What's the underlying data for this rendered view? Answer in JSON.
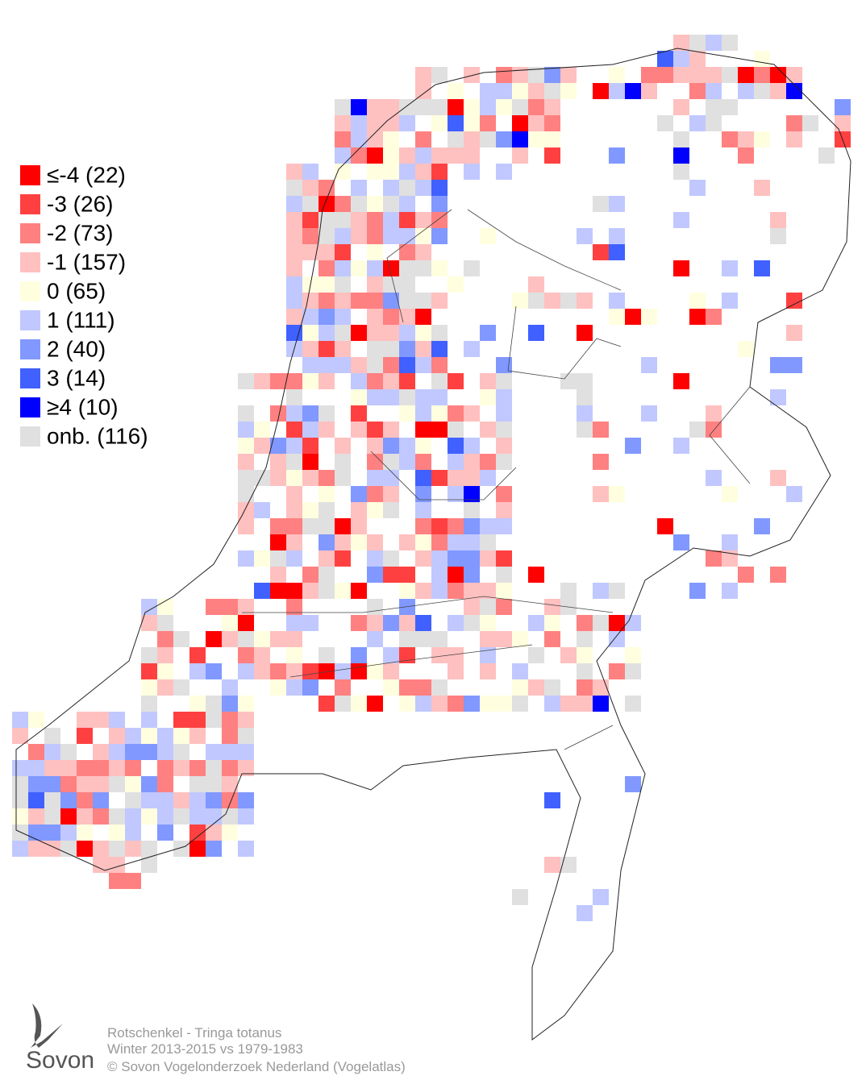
{
  "legend": {
    "items": [
      {
        "label": "≤-4 (22)",
        "color": "#ff0000"
      },
      {
        "label": "-3 (26)",
        "color": "#ff4040"
      },
      {
        "label": "-2 (73)",
        "color": "#ff8080"
      },
      {
        "label": "-1 (157)",
        "color": "#ffc0c0"
      },
      {
        "label": "0 (65)",
        "color": "#ffffe0"
      },
      {
        "label": "1 (111)",
        "color": "#c0c8ff"
      },
      {
        "label": "2 (40)",
        "color": "#8098ff"
      },
      {
        "label": "3 (14)",
        "color": "#4060ff"
      },
      {
        "label": "≥4 (10)",
        "color": "#0000ff"
      },
      {
        "label": "onb. (116)",
        "color": "#e0e0e0"
      }
    ]
  },
  "caption": {
    "species": "Rotschenkel - Tringa totanus",
    "period": "Winter 2013-2015 vs 1979-1983",
    "copyright": "© Sovon Vogelonderzoek Nederland (Vogelatlas)"
  },
  "logo": {
    "text": "Sovon"
  }
}
